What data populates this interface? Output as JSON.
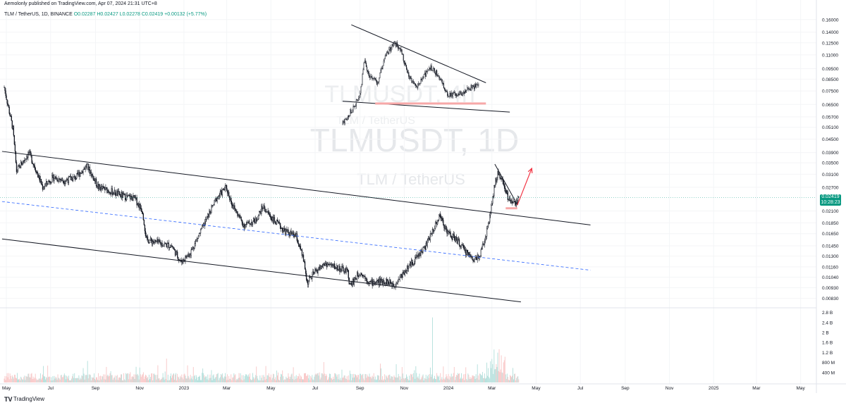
{
  "header": {
    "publisher_line": "Aemolonly published on TradingView.com, Apr 07, 2024 21:31 UTC+8",
    "symbol_line": "TLM / TetherUS, 1D, BINANCE",
    "ohlc": "O0.02287 H0.02427 L0.02278 C0.02419 +0.00132 (+5.77%)"
  },
  "watermark": {
    "main": "TLMUSDT, 1D",
    "sub": "TLM / TetherUS",
    "inset_main": "TLMUSDT, 4h",
    "inset_sub": "TLM / TetherUS"
  },
  "last_price": {
    "value": "0.02419",
    "countdown": "10:28:23",
    "color": "#089981"
  },
  "footer": {
    "logo": "TV",
    "brand": "TradingView"
  },
  "colors": {
    "candle": "#131722",
    "trendline": "#131722",
    "midline": "#2962ff",
    "arrow": "#f23645",
    "support": "#f7a8a8",
    "vol_up": "#b2dfdb",
    "vol_down": "#f8c5c5"
  },
  "chart_data": {
    "type": "candlestick",
    "y_scale": "log",
    "ylim": [
      0.0078,
      0.18
    ],
    "yticks": [
      "0.16000",
      "0.14000",
      "0.12500",
      "0.11000",
      "0.09500",
      "0.08500",
      "0.07500",
      "0.06500",
      "0.05700",
      "0.05100",
      "0.04500",
      "0.03900",
      "0.03500",
      "0.03100",
      "0.02700",
      "0.02100",
      "0.01850",
      "0.01650",
      "0.01450",
      "0.01300",
      "0.01160",
      "0.01040",
      "0.00930",
      "0.00830"
    ],
    "xticks": [
      "May",
      "Jul",
      "Sep",
      "Nov",
      "2023",
      "Mar",
      "May",
      "Jul",
      "Sep",
      "Nov",
      "2024",
      "Mar",
      "May",
      "Jul",
      "Sep",
      "Nov",
      "2025",
      "Mar",
      "May"
    ],
    "xtick_dates": [
      "2022-05-01",
      "2022-07-01",
      "2022-09-01",
      "2022-11-01",
      "2023-01-01",
      "2023-03-01",
      "2023-05-01",
      "2023-07-01",
      "2023-09-01",
      "2023-11-01",
      "2024-01-01",
      "2024-03-01",
      "2024-05-01",
      "2024-07-01",
      "2024-09-01",
      "2024-11-01",
      "2025-01-01",
      "2025-03-01",
      "2025-05-01"
    ],
    "price_path": [
      [
        "2022-04-28",
        0.078
      ],
      [
        "2022-05-10",
        0.05
      ],
      [
        "2022-05-15",
        0.032
      ],
      [
        "2022-06-01",
        0.039
      ],
      [
        "2022-06-10",
        0.033
      ],
      [
        "2022-06-20",
        0.027
      ],
      [
        "2022-07-05",
        0.03
      ],
      [
        "2022-07-20",
        0.029
      ],
      [
        "2022-08-05",
        0.03
      ],
      [
        "2022-08-20",
        0.034
      ],
      [
        "2022-09-05",
        0.027
      ],
      [
        "2022-09-20",
        0.026
      ],
      [
        "2022-10-10",
        0.0245
      ],
      [
        "2022-10-25",
        0.024
      ],
      [
        "2022-11-05",
        0.021
      ],
      [
        "2022-11-10",
        0.0155
      ],
      [
        "2022-11-25",
        0.015
      ],
      [
        "2022-12-15",
        0.0145
      ],
      [
        "2022-12-28",
        0.0122
      ],
      [
        "2023-01-10",
        0.0135
      ],
      [
        "2023-01-28",
        0.018
      ],
      [
        "2023-02-15",
        0.024
      ],
      [
        "2023-02-28",
        0.027
      ],
      [
        "2023-03-10",
        0.022
      ],
      [
        "2023-03-25",
        0.018
      ],
      [
        "2023-04-10",
        0.019
      ],
      [
        "2023-04-20",
        0.022
      ],
      [
        "2023-05-05",
        0.019
      ],
      [
        "2023-05-20",
        0.017
      ],
      [
        "2023-06-05",
        0.016
      ],
      [
        "2023-06-15",
        0.0125
      ],
      [
        "2023-06-20",
        0.0098
      ],
      [
        "2023-07-01",
        0.011
      ],
      [
        "2023-07-15",
        0.012
      ],
      [
        "2023-08-01",
        0.0115
      ],
      [
        "2023-08-15",
        0.011
      ],
      [
        "2023-08-18",
        0.0095
      ],
      [
        "2023-09-01",
        0.011
      ],
      [
        "2023-09-15",
        0.0098
      ],
      [
        "2023-10-05",
        0.01
      ],
      [
        "2023-10-18",
        0.0096
      ],
      [
        "2023-11-01",
        0.011
      ],
      [
        "2023-11-15",
        0.0125
      ],
      [
        "2023-12-01",
        0.0145
      ],
      [
        "2023-12-10",
        0.017
      ],
      [
        "2023-12-20",
        0.02
      ],
      [
        "2024-01-01",
        0.0165
      ],
      [
        "2024-01-12",
        0.0155
      ],
      [
        "2024-01-22",
        0.014
      ],
      [
        "2024-02-05",
        0.0125
      ],
      [
        "2024-02-15",
        0.0135
      ],
      [
        "2024-02-25",
        0.018
      ],
      [
        "2024-03-05",
        0.028
      ],
      [
        "2024-03-10",
        0.0315
      ],
      [
        "2024-03-18",
        0.027
      ],
      [
        "2024-03-25",
        0.0235
      ],
      [
        "2024-04-02",
        0.0225
      ],
      [
        "2024-04-07",
        0.0242
      ]
    ],
    "annotations": [
      {
        "type": "trendline",
        "from": [
          "2022-04-25",
          0.0395
        ],
        "to": [
          "2024-07-15",
          0.0181
        ],
        "color": "#131722"
      },
      {
        "type": "trendline",
        "from": [
          "2022-04-25",
          0.0232
        ],
        "to": [
          "2024-07-15",
          0.0112
        ],
        "color": "#2962ff",
        "dashed": true
      },
      {
        "type": "trendline",
        "from": [
          "2022-04-25",
          0.0156
        ],
        "to": [
          "2024-04-10",
          0.008
        ],
        "color": "#131722"
      },
      {
        "type": "trendline",
        "from": [
          "2024-03-05",
          0.0345
        ],
        "to": [
          "2024-04-05",
          0.0225
        ],
        "color": "#131722"
      },
      {
        "type": "hline",
        "from": [
          "2024-03-20",
          0.0216
        ],
        "to": [
          "2024-04-05",
          0.0216
        ],
        "color": "#f7a8a8"
      },
      {
        "type": "arrow",
        "from": [
          "2024-04-05",
          0.0223
        ],
        "to": [
          "2024-04-25",
          0.033
        ],
        "color": "#f23645"
      }
    ],
    "volume": {
      "yticks": [
        "2.8 B",
        "2.4 B",
        "2 B",
        "1.6 B",
        "1.2 B",
        "800 M",
        "400 M"
      ],
      "ylim": [
        0,
        2.9
      ]
    },
    "inset": {
      "timeframe": "4h",
      "price_path": [
        [
          0,
          0.05
        ],
        [
          4,
          0.058
        ],
        [
          8,
          0.068
        ],
        [
          10,
          0.1
        ],
        [
          12,
          0.085
        ],
        [
          16,
          0.078
        ],
        [
          20,
          0.105
        ],
        [
          24,
          0.12
        ],
        [
          27,
          0.108
        ],
        [
          30,
          0.085
        ],
        [
          34,
          0.075
        ],
        [
          37,
          0.082
        ],
        [
          40,
          0.092
        ],
        [
          44,
          0.085
        ],
        [
          48,
          0.07
        ],
        [
          52,
          0.068
        ],
        [
          56,
          0.071
        ],
        [
          60,
          0.075
        ],
        [
          63,
          0.076
        ]
      ],
      "lines": [
        {
          "from": [
            4,
            0.145
          ],
          "to": [
            66,
            0.078
          ]
        },
        {
          "from": [
            0,
            0.064
          ],
          "to": [
            77,
            0.057
          ]
        },
        {
          "from": [
            15,
            0.0625
          ],
          "to": [
            66,
            0.0625
          ],
          "color": "#f7a8a8"
        }
      ]
    }
  }
}
